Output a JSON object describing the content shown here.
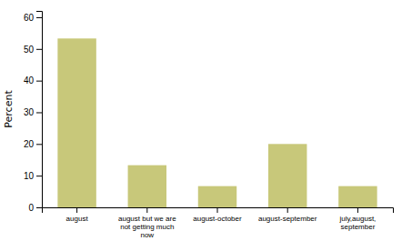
{
  "chart_data": {
    "type": "bar",
    "categories": [
      "august",
      "august but we are\nnot getting much\nnow",
      "august-october",
      "august-september",
      "july,august,\nseptember"
    ],
    "values": [
      53.3,
      13.3,
      6.7,
      20.0,
      6.7
    ],
    "color": "#c8c87a",
    "ylabel": "Percent",
    "ylim": [
      0,
      62
    ],
    "yticks": [
      0,
      10,
      20,
      30,
      40,
      50,
      60
    ],
    "grid": false
  }
}
